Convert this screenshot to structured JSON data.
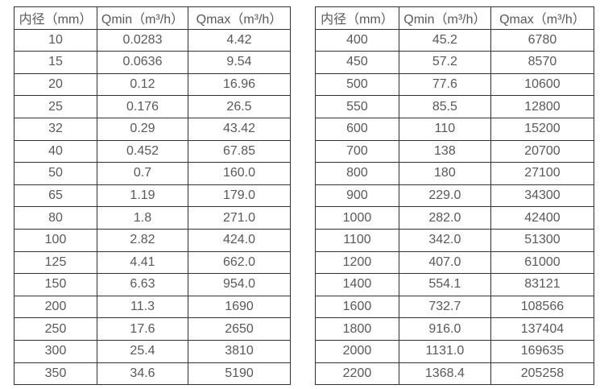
{
  "page": {
    "background": "#ffffff"
  },
  "colors": {
    "border": "#333333",
    "text": "#595959"
  },
  "chart_data": [
    {
      "type": "table",
      "title": "",
      "columns": [
        "内径（mm）",
        "Qmin（m³/h）",
        "Qmax（m³/h）"
      ],
      "rows": [
        [
          "10",
          "0.0283",
          "4.42"
        ],
        [
          "15",
          "0.0636",
          "9.54"
        ],
        [
          "20",
          "0.12",
          "16.96"
        ],
        [
          "25",
          "0.176",
          "26.5"
        ],
        [
          "32",
          "0.29",
          "43.42"
        ],
        [
          "40",
          "0.452",
          "67.85"
        ],
        [
          "50",
          "0.7",
          "160.0"
        ],
        [
          "65",
          "1.19",
          "179.0"
        ],
        [
          "80",
          "1.8",
          "271.0"
        ],
        [
          "100",
          "2.82",
          "424.0"
        ],
        [
          "125",
          "4.41",
          "662.0"
        ],
        [
          "150",
          "6.63",
          "954.0"
        ],
        [
          "200",
          "11.3",
          "1690"
        ],
        [
          "250",
          "17.6",
          "2650"
        ],
        [
          "300",
          "25.4",
          "3810"
        ],
        [
          "350",
          "34.6",
          "5190"
        ]
      ]
    },
    {
      "type": "table",
      "title": "",
      "columns": [
        "内径（mm）",
        "Qmin（m³/h）",
        "Qmax（m³/h）"
      ],
      "rows": [
        [
          "400",
          "45.2",
          "6780"
        ],
        [
          "450",
          "57.2",
          "8570"
        ],
        [
          "500",
          "77.6",
          "10600"
        ],
        [
          "550",
          "85.5",
          "12800"
        ],
        [
          "600",
          "110",
          "15200"
        ],
        [
          "700",
          "138",
          "20700"
        ],
        [
          "800",
          "180",
          "27100"
        ],
        [
          "900",
          "229.0",
          "34300"
        ],
        [
          "1000",
          "282.0",
          "42400"
        ],
        [
          "1100",
          "342.0",
          "51300"
        ],
        [
          "1200",
          "407.0",
          "61000"
        ],
        [
          "1400",
          "554.1",
          "83121"
        ],
        [
          "1600",
          "732.7",
          "108566"
        ],
        [
          "1800",
          "916.0",
          "137404"
        ],
        [
          "2000",
          "1131.0",
          "169635"
        ],
        [
          "2200",
          "1368.4",
          "205258"
        ]
      ]
    }
  ]
}
